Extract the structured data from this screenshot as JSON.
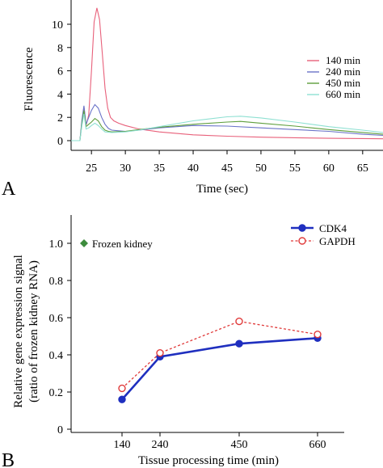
{
  "panels": [
    {
      "letter": "A"
    },
    {
      "letter": "B"
    }
  ],
  "chart_data": [
    {
      "type": "line",
      "xlabel": "Time (sec)",
      "ylabel": "Fluorescence",
      "xlim": [
        22,
        68
      ],
      "ylim": [
        0,
        11.5
      ],
      "x_ticks": [
        25,
        30,
        35,
        40,
        45,
        50,
        55,
        60,
        65
      ],
      "y_ticks": [
        0,
        2,
        4,
        6,
        8,
        10
      ],
      "legend_position": "right",
      "grid": false,
      "series": [
        {
          "name": "140 min",
          "color": "#e8607a",
          "x": [
            22,
            23.3,
            23.6,
            23.9,
            24.2,
            24.6,
            25.0,
            25.4,
            25.8,
            26.2,
            26.6,
            27.0,
            27.4,
            27.8,
            28.3,
            29,
            30,
            32,
            35,
            40,
            45,
            50,
            55,
            60,
            65,
            68
          ],
          "y": [
            0,
            0,
            1.6,
            2.9,
            1.3,
            2.2,
            6.0,
            10.2,
            11.4,
            10.4,
            7.5,
            4.5,
            2.8,
            2.0,
            1.7,
            1.5,
            1.3,
            1.0,
            0.75,
            0.5,
            0.38,
            0.3,
            0.25,
            0.2,
            0.18,
            0.16
          ]
        },
        {
          "name": "240 min",
          "color": "#6a73c8",
          "x": [
            22,
            23.3,
            23.6,
            23.9,
            24.2,
            24.6,
            25.0,
            25.5,
            26.0,
            26.5,
            27.0,
            27.5,
            28,
            29,
            30,
            32,
            35,
            40,
            45,
            50,
            55,
            60,
            65,
            68
          ],
          "y": [
            0,
            0,
            1.8,
            3.0,
            1.4,
            2.0,
            2.6,
            3.1,
            2.8,
            2.0,
            1.4,
            1.05,
            0.9,
            0.85,
            0.8,
            0.9,
            1.1,
            1.3,
            1.25,
            1.1,
            0.95,
            0.8,
            0.55,
            0.45
          ]
        },
        {
          "name": "450 min",
          "color": "#5e9e3c",
          "x": [
            22,
            23.3,
            23.6,
            23.9,
            24.2,
            24.6,
            25.0,
            25.5,
            26.0,
            26.5,
            27,
            27.5,
            28,
            30,
            32,
            35,
            40,
            45,
            47,
            50,
            55,
            60,
            65,
            68
          ],
          "y": [
            0,
            0,
            1.5,
            2.6,
            1.2,
            1.4,
            1.6,
            1.9,
            1.7,
            1.2,
            0.9,
            0.8,
            0.75,
            0.8,
            0.95,
            1.15,
            1.4,
            1.6,
            1.65,
            1.5,
            1.25,
            0.95,
            0.7,
            0.55
          ]
        },
        {
          "name": "660 min",
          "color": "#8ee0d2",
          "x": [
            22,
            23.3,
            23.6,
            23.9,
            24.2,
            24.6,
            25.0,
            25.5,
            26.0,
            26.5,
            27,
            28,
            30,
            32,
            35,
            40,
            45,
            47,
            50,
            55,
            60,
            65,
            68
          ],
          "y": [
            0,
            0,
            1.3,
            2.3,
            1.0,
            1.1,
            1.3,
            1.5,
            1.3,
            1.0,
            0.75,
            0.7,
            0.75,
            0.9,
            1.2,
            1.7,
            2.05,
            2.1,
            1.95,
            1.6,
            1.2,
            0.9,
            0.7
          ]
        }
      ]
    },
    {
      "type": "line",
      "xlabel": "Tissue processing time (min)",
      "ylabel_line1": "Relative gene expression signal",
      "ylabel_line2": "(ratio of frozen kidney RNA)",
      "categories": [
        "140",
        "240",
        "450",
        "660"
      ],
      "ylim": [
        0,
        1.1
      ],
      "y_ticks": [
        "0",
        "0.2",
        "0.4",
        "0.6",
        "0.8",
        "1.0"
      ],
      "legend_position": "top-right",
      "grid": false,
      "series": [
        {
          "name": "CDK4",
          "color": "#1f2fbf",
          "style": "solid",
          "marker": "filled-circle",
          "values": [
            0.16,
            0.39,
            0.46,
            0.49
          ]
        },
        {
          "name": "GAPDH",
          "color": "#e03a3a",
          "style": "dotted",
          "marker": "open-circle",
          "values": [
            0.22,
            0.41,
            0.58,
            0.51
          ]
        }
      ],
      "reference_point": {
        "label": "Frozen kidney",
        "value": 1.0,
        "color": "#3d8c3d",
        "marker": "diamond"
      }
    }
  ]
}
